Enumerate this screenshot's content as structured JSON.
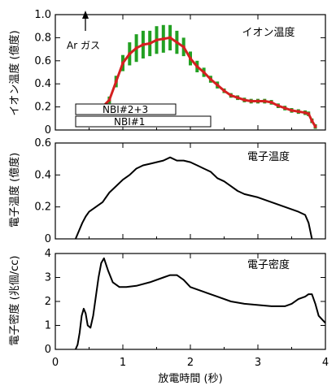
{
  "figure": {
    "xlabel": "放電時間 (秒)",
    "xticks": [
      "0",
      "1",
      "2",
      "3",
      "4"
    ]
  },
  "chart_data": [
    {
      "type": "line",
      "title": "イオン温度",
      "xlabel": "放電時間 (秒)",
      "ylabel": "イオン温度 (億度)",
      "xlim": [
        0,
        4
      ],
      "ylim": [
        0,
        1.0
      ],
      "grid": false,
      "yticks": [
        "0",
        "0.2",
        "0.4",
        "0.6",
        "0.8",
        "1.0"
      ],
      "annotations": {
        "ar_gas": {
          "label": "Ar ガス",
          "x": 0.45
        },
        "nbi_23": {
          "label": "NBI#2+3",
          "x_start": 0.3,
          "x_end": 1.8
        },
        "nbi_1": {
          "label": "NBI#1",
          "x_start": 0.3,
          "x_end": 2.3
        }
      },
      "series": [
        {
          "color": "#d42020",
          "error_color": "#22a022",
          "x": [
            0.35,
            0.5,
            0.6,
            0.7,
            0.8,
            0.9,
            1.0,
            1.1,
            1.2,
            1.3,
            1.4,
            1.5,
            1.6,
            1.7,
            1.8,
            1.9,
            2.0,
            2.1,
            2.2,
            2.3,
            2.4,
            2.5,
            2.6,
            2.7,
            2.8,
            2.9,
            3.0,
            3.1,
            3.2,
            3.3,
            3.4,
            3.5,
            3.6,
            3.7,
            3.75,
            3.8,
            3.85
          ],
          "y": [
            0.16,
            0.2,
            0.19,
            0.2,
            0.26,
            0.42,
            0.58,
            0.66,
            0.71,
            0.74,
            0.75,
            0.78,
            0.79,
            0.8,
            0.76,
            0.72,
            0.62,
            0.55,
            0.5,
            0.44,
            0.39,
            0.34,
            0.3,
            0.28,
            0.26,
            0.25,
            0.25,
            0.25,
            0.24,
            0.21,
            0.19,
            0.17,
            0.16,
            0.15,
            0.14,
            0.08,
            0.03
          ],
          "err": [
            0.02,
            0.02,
            0.02,
            0.02,
            0.03,
            0.05,
            0.07,
            0.1,
            0.12,
            0.12,
            0.11,
            0.12,
            0.12,
            0.11,
            0.1,
            0.08,
            0.06,
            0.05,
            0.04,
            0.03,
            0.03,
            0.02,
            0.02,
            0.02,
            0.02,
            0.02,
            0.02,
            0.02,
            0.02,
            0.02,
            0.02,
            0.02,
            0.02,
            0.02,
            0.02,
            0.02,
            0.02
          ]
        }
      ]
    },
    {
      "type": "line",
      "title": "電子温度",
      "xlabel": "放電時間 (秒)",
      "ylabel": "電子温度 (億度)",
      "xlim": [
        0,
        4
      ],
      "ylim": [
        0,
        0.6
      ],
      "grid": false,
      "yticks": [
        "0",
        "0.2",
        "0.4",
        "0.6"
      ],
      "series": [
        {
          "color": "#000000",
          "x": [
            0.3,
            0.35,
            0.4,
            0.45,
            0.5,
            0.6,
            0.7,
            0.8,
            0.9,
            1.0,
            1.1,
            1.2,
            1.3,
            1.4,
            1.5,
            1.6,
            1.7,
            1.8,
            1.9,
            2.0,
            2.1,
            2.2,
            2.3,
            2.4,
            2.5,
            2.6,
            2.7,
            2.8,
            2.9,
            3.0,
            3.2,
            3.4,
            3.6,
            3.7,
            3.75,
            3.8
          ],
          "y": [
            0.0,
            0.05,
            0.1,
            0.14,
            0.17,
            0.2,
            0.23,
            0.29,
            0.33,
            0.37,
            0.4,
            0.44,
            0.46,
            0.47,
            0.48,
            0.49,
            0.51,
            0.49,
            0.49,
            0.48,
            0.46,
            0.44,
            0.42,
            0.38,
            0.36,
            0.33,
            0.3,
            0.28,
            0.27,
            0.26,
            0.23,
            0.2,
            0.17,
            0.15,
            0.1,
            0.0
          ]
        }
      ]
    },
    {
      "type": "line",
      "title": "電子密度",
      "xlabel": "放電時間 (秒)",
      "ylabel": "電子密度 (兆個/cc)",
      "xlim": [
        0,
        4
      ],
      "ylim": [
        0,
        4
      ],
      "grid": false,
      "yticks": [
        "0",
        "1",
        "2",
        "3",
        "4"
      ],
      "series": [
        {
          "color": "#000000",
          "x": [
            0.3,
            0.33,
            0.36,
            0.39,
            0.42,
            0.45,
            0.48,
            0.52,
            0.56,
            0.6,
            0.64,
            0.68,
            0.72,
            0.78,
            0.85,
            0.95,
            1.05,
            1.2,
            1.4,
            1.6,
            1.7,
            1.8,
            1.9,
            2.0,
            2.2,
            2.4,
            2.6,
            2.8,
            3.0,
            3.2,
            3.4,
            3.5,
            3.6,
            3.7,
            3.75,
            3.8,
            3.85,
            3.9,
            4.0
          ],
          "y": [
            0.0,
            0.2,
            0.7,
            1.4,
            1.7,
            1.5,
            1.0,
            0.9,
            1.4,
            2.2,
            3.0,
            3.6,
            3.8,
            3.3,
            2.8,
            2.6,
            2.6,
            2.65,
            2.8,
            3.0,
            3.1,
            3.1,
            2.9,
            2.6,
            2.4,
            2.2,
            2.0,
            1.9,
            1.85,
            1.8,
            1.8,
            1.9,
            2.1,
            2.2,
            2.3,
            2.3,
            1.9,
            1.4,
            1.1
          ]
        }
      ]
    }
  ]
}
